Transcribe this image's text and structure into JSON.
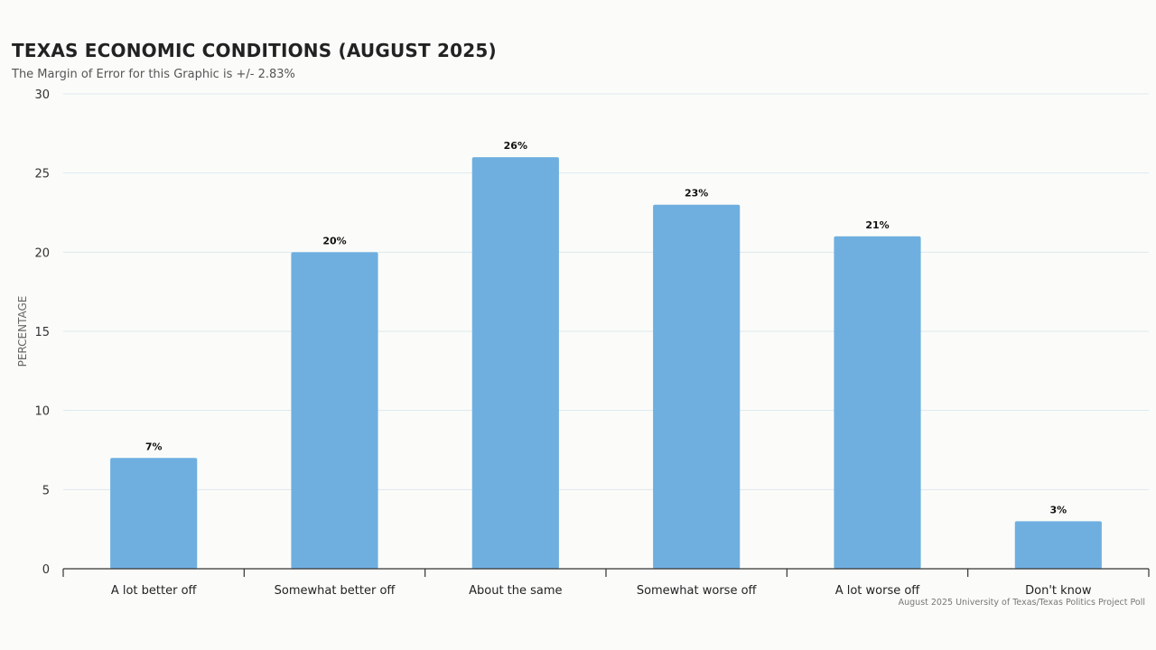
{
  "header": {
    "title": "TEXAS ECONOMIC CONDITIONS (AUGUST 2025)",
    "subtitle": "The Margin of Error for this Graphic is +/- 2.83%"
  },
  "footer": {
    "credit": "August 2025 University of Texas/Texas Politics Project Poll"
  },
  "chart_data": {
    "type": "bar",
    "title": "TEXAS ECONOMIC CONDITIONS (AUGUST 2025)",
    "subtitle": "The Margin of Error for this Graphic is +/- 2.83%",
    "xlabel": "",
    "ylabel": "PERCENTAGE",
    "ylim": [
      0,
      30
    ],
    "yticks": [
      0,
      5,
      10,
      15,
      20,
      25,
      30
    ],
    "grid": true,
    "categories": [
      "A lot better off",
      "Somewhat better off",
      "About the same",
      "Somewhat worse off",
      "A lot worse off",
      "Don't know"
    ],
    "values": [
      7,
      20,
      26,
      23,
      21,
      3
    ],
    "data_labels": [
      "7%",
      "20%",
      "26%",
      "23%",
      "21%",
      "3%"
    ],
    "bar_color": "#6fafe0",
    "grid_color": "#dde8ee"
  }
}
